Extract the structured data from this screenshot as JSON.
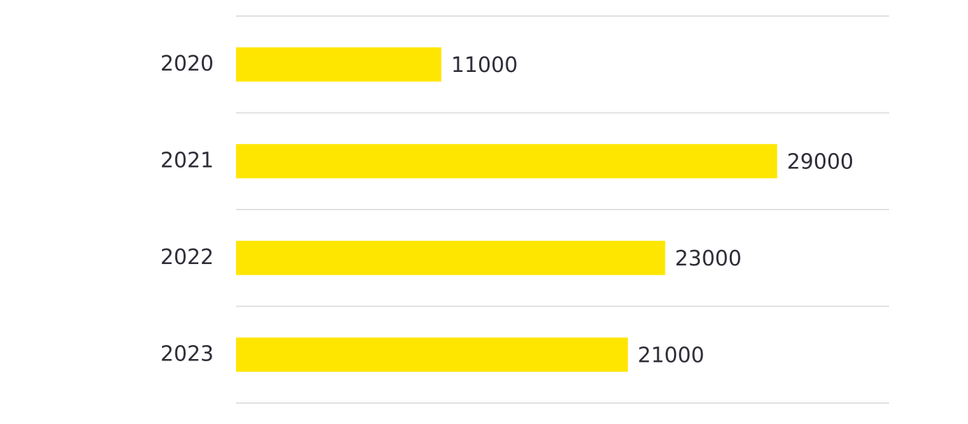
{
  "chart_data": {
    "type": "hbar",
    "categories": [
      "2020",
      "2021",
      "2022",
      "2023"
    ],
    "values": [
      11000,
      29000,
      23000,
      21000
    ],
    "color": "#ffe600",
    "xlim": [
      0,
      35000
    ]
  }
}
